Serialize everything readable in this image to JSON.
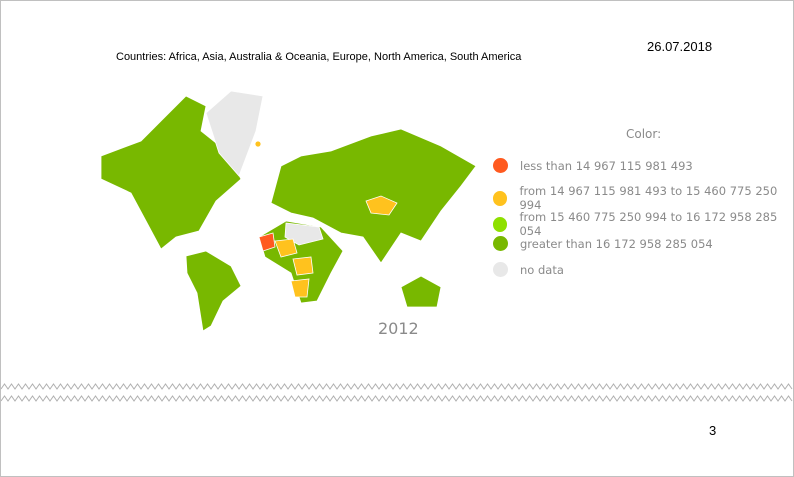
{
  "header": {
    "countries": "Countries: Africa, Asia, Australia & Oceania, Europe, North America, South America",
    "date": "26.07.2018"
  },
  "map": {
    "year": "2012"
  },
  "legend": {
    "title": "Color:",
    "items": [
      {
        "label": "less than 14 967 115 981 493",
        "color": "#ff5a1f"
      },
      {
        "label": "from 14 967 115 981 493 to 15 460 775 250 994",
        "color": "#ffc21e"
      },
      {
        "label": "from 15 460 775 250 994 to 16 172 958 285 054",
        "color": "#8ee000"
      },
      {
        "label": "greater than 16 172 958 285 054",
        "color": "#78b800"
      },
      {
        "label": "no data",
        "color": "#e8e8e8"
      }
    ]
  },
  "footer": {
    "page_number": "3"
  }
}
